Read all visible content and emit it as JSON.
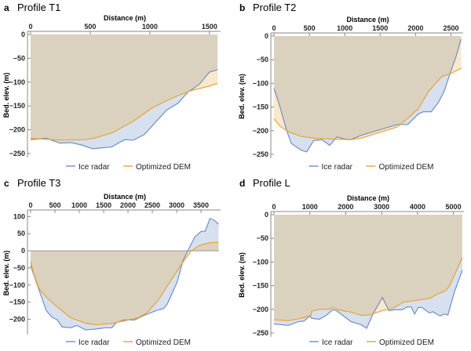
{
  "chart_data": [
    {
      "type": "area",
      "panel": "a",
      "title": "Profile T1",
      "xlabel": "Distance (m)",
      "ylabel": "Bed. elev. (m)",
      "xlim": [
        0,
        1580
      ],
      "ylim": [
        -255,
        0
      ],
      "xticks": [
        0,
        500,
        1000,
        1500
      ],
      "yticks": [
        0,
        -50,
        -100,
        -150,
        -200,
        -250
      ],
      "legend_position": "bottom",
      "series": [
        {
          "name": "Ice radar",
          "color": "#6f8fc4",
          "x": [
            0,
            131,
            245,
            343,
            441,
            520,
            681,
            786,
            860,
            954,
            1140,
            1238,
            1314,
            1413,
            1500,
            1568
          ],
          "y": [
            -221,
            -218,
            -228,
            -227,
            -233,
            -240,
            -236,
            -221,
            -222,
            -210,
            -159,
            -144,
            -122,
            -105,
            -79,
            -74
          ]
        },
        {
          "name": "Optimized DEM",
          "color": "#e8a530",
          "x": [
            0,
            245,
            463,
            529,
            681,
            856,
            1009,
            1140,
            1249,
            1358,
            1489,
            1568
          ],
          "y": [
            -218,
            -222,
            -221,
            -218,
            -207,
            -183,
            -156,
            -139,
            -127,
            -117,
            -109,
            -103
          ]
        }
      ]
    },
    {
      "type": "area",
      "panel": "b",
      "title": "Profile T2",
      "xlabel": "Distance (m)",
      "ylabel": "Bed. elev. (m)",
      "xlim": [
        0,
        2650
      ],
      "ylim": [
        -255,
        0
      ],
      "xticks": [
        0,
        500,
        1000,
        1500,
        2000,
        2500
      ],
      "yticks": [
        0,
        -50,
        -100,
        -150,
        -200,
        -250
      ],
      "legend_position": "bottom",
      "series": [
        {
          "name": "Ice radar",
          "color": "#6f8fc4",
          "x": [
            0,
            70,
            180,
            246,
            382,
            463,
            559,
            676,
            787,
            890,
            1007,
            1081,
            1228,
            1743,
            1890,
            2037,
            2110,
            2221,
            2324,
            2404,
            2485,
            2570,
            2643
          ],
          "y": [
            -111,
            -142,
            -200,
            -227,
            -241,
            -245,
            -221,
            -219,
            -231,
            -213,
            -218,
            -219,
            -210,
            -187,
            -187,
            -165,
            -160,
            -160,
            -140,
            -117,
            -80,
            -44,
            -7
          ]
        },
        {
          "name": "Optimized DEM",
          "color": "#e8a530",
          "x": [
            0,
            88,
            199,
            382,
            566,
            860,
            1081,
            1228,
            1743,
            1890,
            2037,
            2184,
            2368,
            2515,
            2643
          ],
          "y": [
            -175,
            -191,
            -202,
            -212,
            -216,
            -218,
            -219,
            -216,
            -192,
            -174,
            -154,
            -117,
            -86,
            -78,
            -68
          ]
        }
      ]
    },
    {
      "type": "area",
      "panel": "c",
      "title": "Profile T3",
      "xlabel": "Distance (m)",
      "ylabel": "Bed. elev. (m)",
      "xlim": [
        0,
        3870
      ],
      "ylim": [
        -240,
        110
      ],
      "xticks": [
        0,
        500,
        1000,
        1500,
        2000,
        2500,
        3000,
        3500
      ],
      "yticks": [
        100,
        50,
        0,
        -50,
        -100,
        -150,
        -200
      ],
      "legend_position": "bottom",
      "series": [
        {
          "name": "Ice radar",
          "color": "#6f8fc4",
          "x": [
            0,
            172,
            323,
            441,
            548,
            645,
            817,
            952,
            1129,
            1301,
            1516,
            1667,
            1758,
            1919,
            2134,
            2323,
            2591,
            2726,
            2806,
            3011,
            3129,
            3237,
            3371,
            3505,
            3586,
            3683,
            3763,
            3860
          ],
          "y": [
            -43,
            -114,
            -175,
            -194,
            -202,
            -222,
            -225,
            -218,
            -231,
            -229,
            -225,
            -225,
            -210,
            -202,
            -202,
            -189,
            -174,
            -169,
            -156,
            -91,
            -29,
            2,
            40,
            57,
            57,
            94,
            90,
            78
          ]
        },
        {
          "name": "Optimized DEM",
          "color": "#e8a530",
          "x": [
            0,
            65,
            172,
            333,
            548,
            817,
            1140,
            1355,
            1677,
            1946,
            2215,
            2403,
            2618,
            2860,
            3129,
            3290,
            3452,
            3667,
            3860
          ],
          "y": [
            -31,
            -68,
            -110,
            -137,
            -164,
            -195,
            -212,
            -216,
            -212,
            -204,
            -195,
            -179,
            -145,
            -91,
            -33,
            -2,
            15,
            23,
            25
          ]
        }
      ]
    },
    {
      "type": "area",
      "panel": "d",
      "title": "Profile L",
      "xlabel": "Distance (m)",
      "ylabel": "Bed. elev. (m)",
      "xlim": [
        0,
        5250
      ],
      "ylim": [
        -255,
        0
      ],
      "xticks": [
        0,
        1000,
        2000,
        3000,
        4000,
        5000
      ],
      "yticks": [
        0,
        -50,
        -100,
        -150,
        -200,
        -250
      ],
      "legend_position": "bottom",
      "series": [
        {
          "name": "Ice radar",
          "color": "#6f8fc4",
          "x": [
            0,
            394,
            686,
            832,
            1000,
            1051,
            1270,
            1453,
            1635,
            1745,
            2146,
            2438,
            2584,
            2766,
            3022,
            3204,
            3350,
            3569,
            3715,
            3825,
            3920,
            4022,
            4117,
            4336,
            4423,
            4628,
            4737,
            4847,
            5029,
            5248
          ],
          "y": [
            -231,
            -234,
            -226,
            -225,
            -214,
            -219,
            -221,
            -213,
            -201,
            -203,
            -226,
            -233,
            -240,
            -209,
            -175,
            -203,
            -201,
            -201,
            -195,
            -195,
            -210,
            -196,
            -196,
            -208,
            -205,
            -214,
            -210,
            -212,
            -163,
            -118
          ]
        },
        {
          "name": "Optimized DEM",
          "color": "#e8a530",
          "x": [
            0,
            394,
            759,
            978,
            1036,
            1051,
            1270,
            1526,
            1650,
            1781,
            2146,
            2438,
            2657,
            3022,
            3314,
            3606,
            3971,
            4336,
            4555,
            4774,
            4883,
            5248
          ],
          "y": [
            -222,
            -224,
            -219,
            -214,
            -213,
            -204,
            -200,
            -200,
            -196,
            -201,
            -206,
            -213,
            -212,
            -203,
            -198,
            -185,
            -181,
            -177,
            -168,
            -161,
            -152,
            -91
          ]
        }
      ]
    }
  ]
}
